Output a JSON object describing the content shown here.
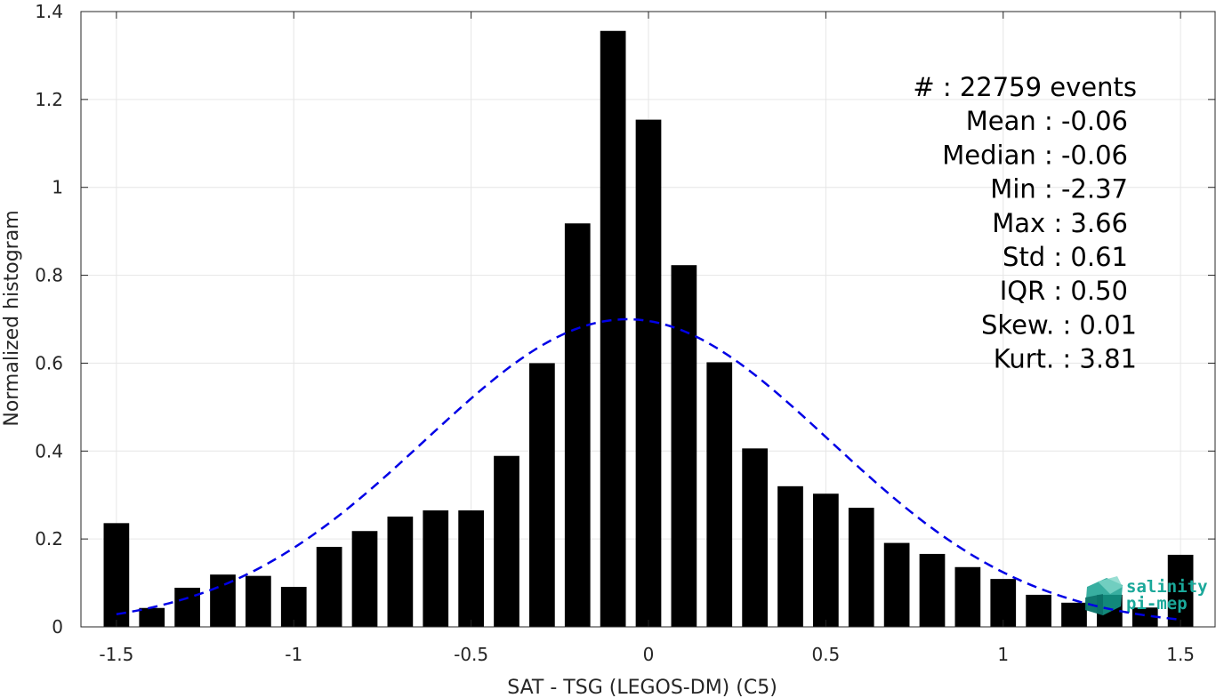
{
  "chart_data": {
    "type": "bar",
    "x": [
      -1.5,
      -1.4,
      -1.3,
      -1.2,
      -1.1,
      -1.0,
      -0.9,
      -0.8,
      -0.7,
      -0.6,
      -0.5,
      -0.4,
      -0.3,
      -0.2,
      -0.1,
      0.0,
      0.1,
      0.2,
      0.3,
      0.4,
      0.5,
      0.6,
      0.7,
      0.8,
      0.9,
      1.0,
      1.1,
      1.2,
      1.3,
      1.4,
      1.5
    ],
    "values": [
      0.236,
      0.043,
      0.089,
      0.119,
      0.116,
      0.091,
      0.182,
      0.218,
      0.251,
      0.265,
      0.265,
      0.389,
      0.6,
      0.918,
      1.356,
      1.154,
      0.823,
      0.602,
      0.406,
      0.32,
      0.303,
      0.271,
      0.191,
      0.166,
      0.136,
      0.109,
      0.073,
      0.055,
      0.073,
      0.044,
      0.164
    ],
    "fit": {
      "type": "normal",
      "mean": -0.06,
      "std": 0.57,
      "color": "#0000e6",
      "style": "dashed",
      "x_range": [
        -1.5,
        1.5
      ]
    },
    "bar_color": "#000000",
    "xlabel": "SAT - TSG (LEGOS-DM) (C5)",
    "ylabel": "Normalized histogram",
    "xlim": [
      -1.6,
      1.6
    ],
    "ylim": [
      0,
      1.4
    ],
    "xticks": [
      -1.5,
      -1,
      -0.5,
      0,
      0.5,
      1,
      1.5
    ],
    "xtick_labels": [
      "-1.5",
      "-1",
      "-0.5",
      "0",
      "0.5",
      "1",
      "1.5"
    ],
    "yticks": [
      0,
      0.2,
      0.4,
      0.6,
      0.8,
      1,
      1.2,
      1.4
    ],
    "ytick_labels": [
      "0",
      "0.2",
      "0.4",
      "0.6",
      "0.8",
      "1",
      "1.2",
      "1.4"
    ],
    "grid": true,
    "stats": [
      "#  : 22759 events",
      "Mean : -0.06",
      "Median : -0.06",
      "Min : -2.37",
      "Max : 3.66",
      "Std : 0.61",
      "IQR : 0.50",
      "Skew. : 0.01",
      "Kurt. : 3.81"
    ]
  },
  "logo": {
    "line1": "salinity",
    "line2": "pi-mep",
    "color": "#1aa89a"
  }
}
